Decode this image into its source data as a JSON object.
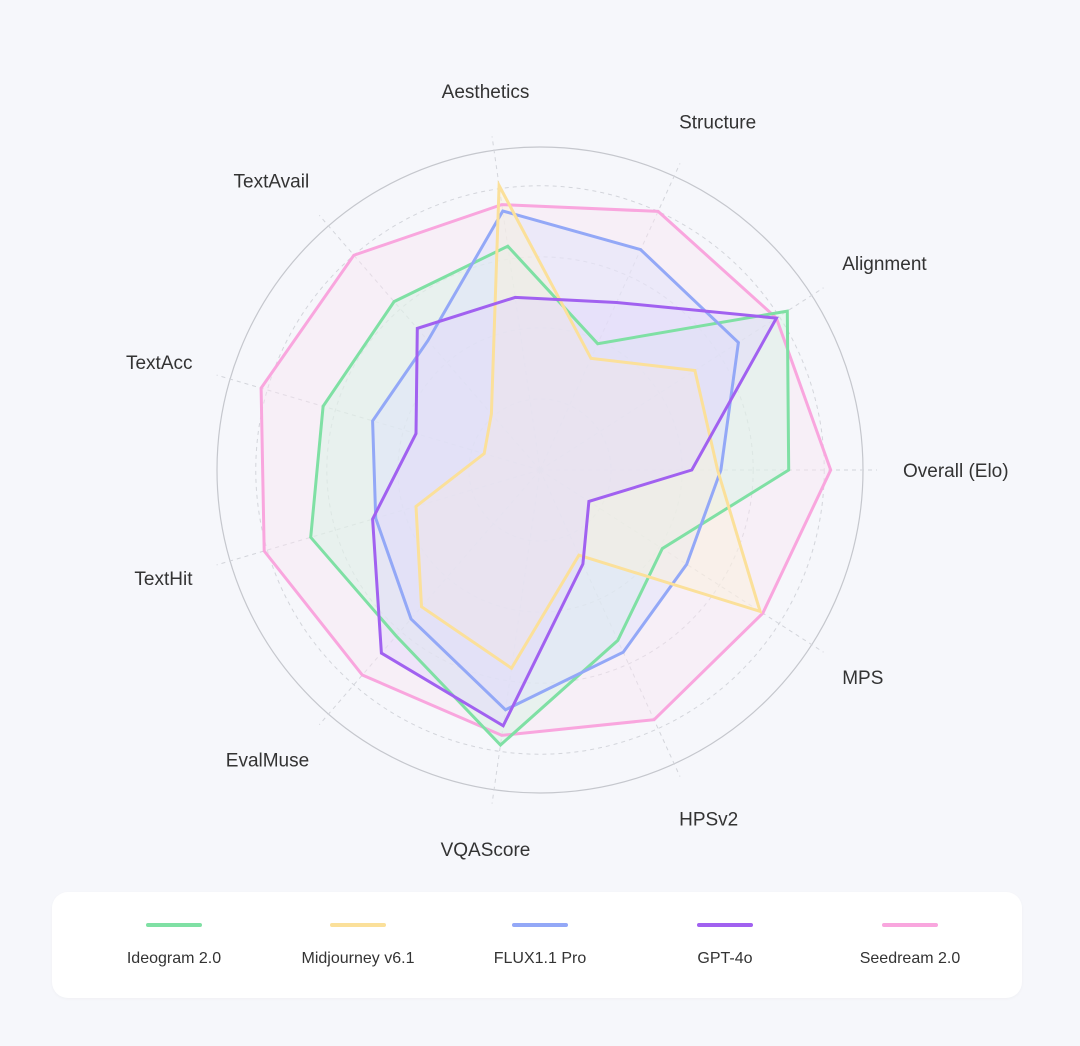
{
  "chart_data": {
    "type": "radar",
    "axes": [
      "Overall (Elo)",
      "MPS",
      "HPSv2",
      "VQAScore",
      "EvalMuse",
      "TextHit",
      "TextAcc",
      "TextAvail",
      "Aesthetics",
      "Structure",
      "Alignment"
    ],
    "rlim": [
      0,
      1
    ],
    "grid": "dashed concentric circles",
    "legend_position": "bottom",
    "series": [
      {
        "name": "Ideogram 2.0",
        "color": "#7fe0a4",
        "fill": "#d4f3e2",
        "values": [
          0.77,
          0.45,
          0.58,
          0.86,
          0.68,
          0.74,
          0.7,
          0.69,
          0.7,
          0.43,
          0.91
        ]
      },
      {
        "name": "Midjourney v6.1",
        "color": "#fbe09a",
        "fill": "#fbf1da",
        "values": [
          0.55,
          0.81,
          0.29,
          0.62,
          0.56,
          0.4,
          0.18,
          0.23,
          0.89,
          0.38,
          0.57
        ]
      },
      {
        "name": "FLUX1.1 Pro",
        "color": "#93a8f7",
        "fill": "#dde3fb",
        "values": [
          0.56,
          0.54,
          0.62,
          0.75,
          0.61,
          0.53,
          0.54,
          0.53,
          0.81,
          0.75,
          0.73
        ]
      },
      {
        "name": "GPT-4o",
        "color": "#a161f0",
        "fill": "#e3d6fb",
        "values": [
          0.47,
          0.18,
          0.32,
          0.8,
          0.75,
          0.54,
          0.4,
          0.58,
          0.54,
          0.57,
          0.87
        ]
      },
      {
        "name": "Seedream 2.0",
        "color": "#f9a6de",
        "fill": "#f8e4f2",
        "values": [
          0.9,
          0.82,
          0.85,
          0.83,
          0.84,
          0.89,
          0.9,
          0.88,
          0.83,
          0.88,
          0.87
        ]
      }
    ]
  }
}
